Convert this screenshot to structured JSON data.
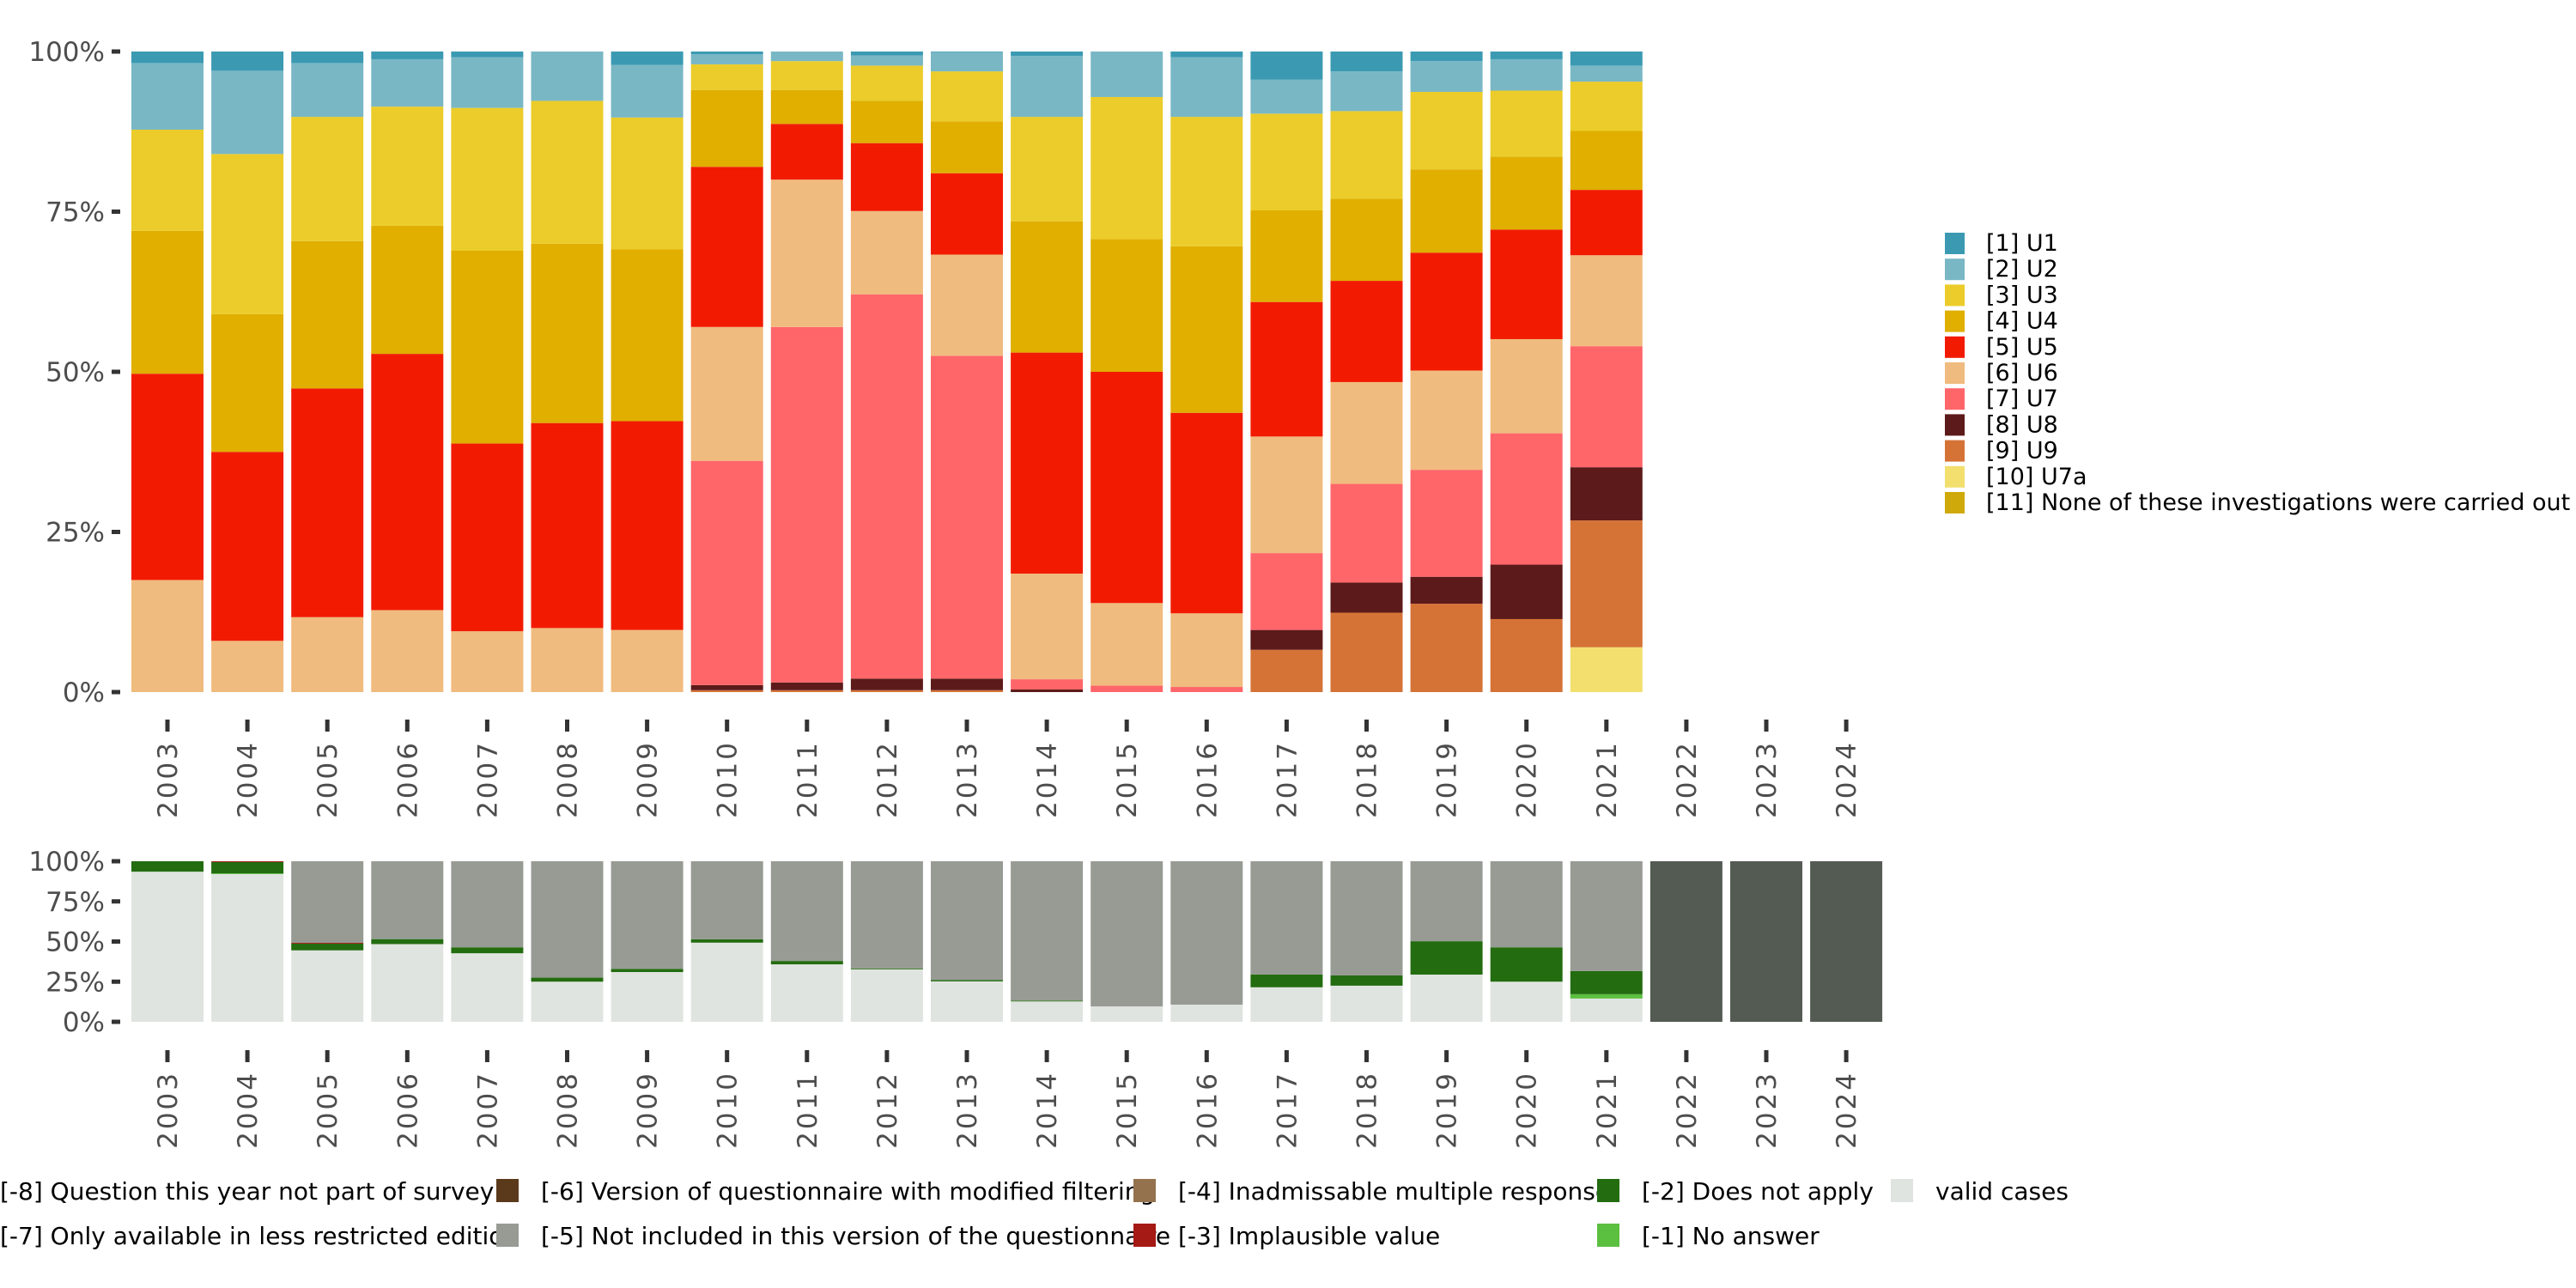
{
  "chart_data": [
    {
      "type": "bar",
      "stacked": true,
      "orientation": "vertical",
      "title": "",
      "xlabel": "",
      "ylabel": "",
      "ylim": [
        0,
        100
      ],
      "y_ticks": [
        "0%",
        "25%",
        "50%",
        "75%",
        "100%"
      ],
      "y_tick_values": [
        0,
        25,
        50,
        75,
        100
      ],
      "categories": [
        "2003",
        "2004",
        "2005",
        "2006",
        "2007",
        "2008",
        "2009",
        "2010",
        "2011",
        "2012",
        "2013",
        "2014",
        "2015",
        "2016",
        "2017",
        "2018",
        "2019",
        "2020",
        "2021",
        "2022",
        "2023",
        "2024"
      ],
      "legend_position": "right",
      "grid": false,
      "series": [
        {
          "name": "[10] U7a",
          "color": "#F2DF6E",
          "values": [
            0,
            0,
            0,
            0,
            0,
            0,
            0,
            0,
            0,
            0,
            0,
            0,
            0,
            0,
            0,
            0,
            0,
            0,
            7.0,
            0,
            0,
            0
          ]
        },
        {
          "name": "[9] U9",
          "color": "#D57337",
          "values": [
            0,
            0,
            0,
            0,
            0,
            0,
            0,
            0.3,
            0.3,
            0.3,
            0.3,
            0,
            0,
            0,
            6.6,
            12.4,
            13.8,
            11.4,
            19.8,
            0,
            0,
            0
          ]
        },
        {
          "name": "[8] U8",
          "color": "#5C1A1A",
          "values": [
            0,
            0,
            0,
            0,
            0,
            0,
            0,
            0.8,
            1.2,
            1.8,
            1.8,
            0.4,
            0,
            0,
            3.1,
            4.7,
            4.2,
            8.5,
            8.3,
            0,
            0,
            0
          ]
        },
        {
          "name": "[7] U7",
          "color": "#FF666A",
          "values": [
            0,
            0,
            0,
            0,
            0,
            0,
            0,
            35.0,
            55.5,
            60.0,
            50.4,
            1.6,
            1.0,
            0.8,
            12.0,
            15.4,
            16.7,
            20.5,
            18.9,
            0,
            0,
            0
          ]
        },
        {
          "name": "[6] U6",
          "color": "#F0BB7E",
          "values": [
            17.5,
            8.0,
            11.7,
            12.8,
            9.5,
            10.0,
            9.7,
            20.9,
            23.0,
            13.0,
            15.8,
            16.5,
            12.9,
            11.5,
            18.2,
            15.9,
            15.5,
            14.7,
            14.2,
            0,
            0,
            0
          ]
        },
        {
          "name": "[5] U5",
          "color": "#F21B02",
          "values": [
            32.2,
            29.5,
            35.7,
            40.0,
            29.3,
            32.0,
            32.6,
            25.0,
            8.7,
            10.6,
            12.7,
            34.5,
            36.1,
            31.3,
            21.0,
            15.8,
            18.4,
            17.1,
            10.2,
            0,
            0,
            0
          ]
        },
        {
          "name": "[4] U4",
          "color": "#E0AF00",
          "values": [
            22.3,
            21.5,
            23.0,
            20.0,
            30.1,
            28.0,
            26.8,
            12.0,
            5.3,
            6.6,
            8.1,
            20.5,
            20.7,
            26.0,
            14.3,
            12.8,
            13.0,
            11.4,
            9.2,
            0,
            0,
            0
          ]
        },
        {
          "name": "[3] U3",
          "color": "#EBCC2B",
          "values": [
            15.8,
            25.0,
            19.4,
            18.6,
            22.3,
            22.3,
            20.6,
            4.0,
            4.5,
            5.5,
            7.8,
            16.3,
            22.2,
            20.2,
            15.1,
            13.7,
            12.1,
            10.3,
            7.7,
            0,
            0,
            0
          ]
        },
        {
          "name": "[2] U2",
          "color": "#79B7C5",
          "values": [
            10.4,
            13.0,
            8.4,
            7.4,
            7.9,
            7.7,
            8.2,
            1.6,
            1.5,
            1.6,
            3.0,
            9.5,
            7.1,
            9.3,
            5.3,
            6.2,
            4.8,
            4.9,
            2.5,
            0,
            0,
            0
          ]
        },
        {
          "name": "[1] U1",
          "color": "#3B9AB2",
          "values": [
            1.8,
            3.0,
            1.8,
            1.2,
            0.9,
            0,
            2.1,
            0.4,
            0,
            0.6,
            0.1,
            0.7,
            0,
            0.9,
            4.4,
            3.1,
            1.5,
            1.2,
            2.2,
            0,
            0,
            0
          ]
        }
      ],
      "legend": [
        {
          "label": "[1] U1",
          "color": "#3B9AB2"
        },
        {
          "label": "[2] U2",
          "color": "#79B7C5"
        },
        {
          "label": "[3] U3",
          "color": "#EBCC2B"
        },
        {
          "label": "[4] U4",
          "color": "#E0AF00"
        },
        {
          "label": "[5] U5",
          "color": "#F21B02"
        },
        {
          "label": "[6] U6",
          "color": "#F0BB7E"
        },
        {
          "label": "[7] U7",
          "color": "#FF666A"
        },
        {
          "label": "[8] U8",
          "color": "#5C1A1A"
        },
        {
          "label": "[9] U9",
          "color": "#D57337"
        },
        {
          "label": "[10] U7a",
          "color": "#F2DF6E"
        },
        {
          "label": "[11] None of these investigations were carried out",
          "color": "#CFA809"
        }
      ]
    },
    {
      "type": "bar",
      "stacked": true,
      "orientation": "vertical",
      "title": "",
      "xlabel": "",
      "ylabel": "",
      "ylim": [
        0,
        100
      ],
      "y_ticks": [
        "0%",
        "25%",
        "50%",
        "75%",
        "100%"
      ],
      "y_tick_values": [
        0,
        25,
        50,
        75,
        100
      ],
      "categories": [
        "2003",
        "2004",
        "2005",
        "2006",
        "2007",
        "2008",
        "2009",
        "2010",
        "2011",
        "2012",
        "2013",
        "2014",
        "2015",
        "2016",
        "2017",
        "2018",
        "2019",
        "2020",
        "2021",
        "2022",
        "2023",
        "2024"
      ],
      "legend_position": "bottom",
      "grid": false,
      "series": [
        {
          "name": "valid cases",
          "color": "#E0E4E0",
          "values": [
            93.5,
            92.0,
            44.5,
            48.4,
            42.7,
            25.0,
            31.0,
            49.3,
            35.8,
            32.7,
            25.2,
            12.7,
            9.6,
            10.7,
            21.5,
            22.5,
            29.4,
            25.0,
            14.5,
            0,
            0,
            0
          ]
        },
        {
          "name": "[-1] No answer",
          "color": "#5BBF40",
          "values": [
            0,
            0.5,
            0,
            0,
            0,
            0,
            0,
            0,
            0,
            0,
            0,
            0,
            0,
            0,
            0,
            0,
            0,
            0,
            2.7,
            0,
            0,
            0
          ]
        },
        {
          "name": "[-2] Does not apply",
          "color": "#236C10",
          "values": [
            6.5,
            7.0,
            4.2,
            3.1,
            3.7,
            2.5,
            2.0,
            2.1,
            2.1,
            0.5,
            0.9,
            0.5,
            0,
            0,
            8.0,
            6.4,
            20.8,
            21.4,
            14.4,
            0,
            0,
            0
          ]
        },
        {
          "name": "[-3] Implausible value",
          "color": "#A51A14",
          "values": [
            0,
            0.5,
            0.5,
            0,
            0,
            0,
            0,
            0,
            0,
            0,
            0,
            0,
            0,
            0,
            0,
            0,
            0,
            0,
            0,
            0,
            0,
            0
          ]
        },
        {
          "name": "[-4] Inadmissable multiple response",
          "color": "#94724E",
          "values": [
            0,
            0,
            0,
            0,
            0,
            0,
            0,
            0,
            0,
            0,
            0,
            0,
            0,
            0,
            0,
            0,
            0,
            0,
            0,
            0,
            0,
            0
          ]
        },
        {
          "name": "[-5] Not included in this version of the questionnaire",
          "color": "#979B94",
          "values": [
            0,
            0,
            50.8,
            48.5,
            53.6,
            72.5,
            67.0,
            48.6,
            62.1,
            66.8,
            73.9,
            86.8,
            90.4,
            89.3,
            70.5,
            71.1,
            49.8,
            53.6,
            68.4,
            0,
            0,
            0
          ]
        },
        {
          "name": "[-6] Version of questionnaire with modified filtering",
          "color": "#5B3A1C",
          "values": [
            0,
            0,
            0,
            0,
            0,
            0,
            0,
            0,
            0,
            0,
            0,
            0,
            0,
            0,
            0,
            0,
            0,
            0,
            0,
            0,
            0,
            0
          ]
        },
        {
          "name": "[-7] Only available in less restricted edition",
          "color": "#979B94",
          "values": [
            0,
            0,
            0,
            0,
            0,
            0,
            0,
            0,
            0,
            0,
            0,
            0,
            0,
            0,
            0,
            0,
            0,
            0,
            0,
            0,
            0,
            0
          ]
        },
        {
          "name": "[-8] Question this year not part of survey",
          "color": "#545B53",
          "values": [
            0,
            0,
            0,
            0,
            0,
            0,
            0,
            0,
            0,
            0,
            0,
            0,
            0,
            0,
            0,
            0,
            0,
            0,
            0,
            100,
            100,
            100
          ]
        }
      ],
      "legend": [
        {
          "label": "[-8] Question this year not part of survey",
          "color": "#545B53",
          "row": 0,
          "col": 0,
          "show_key": false
        },
        {
          "label": "[-7] Only available in less restricted edition",
          "color": "#979B94",
          "row": 1,
          "col": 0,
          "show_key": false
        },
        {
          "label": "[-6] Version of questionnaire with modified filtering",
          "color": "#5B3A1C",
          "row": 0,
          "col": 1,
          "show_key": true
        },
        {
          "label": "[-5] Not included in this version of the questionnaire",
          "color": "#979B94",
          "row": 1,
          "col": 1,
          "show_key": true
        },
        {
          "label": "[-4] Inadmissable multiple response",
          "color": "#94724E",
          "row": 0,
          "col": 2,
          "show_key": true
        },
        {
          "label": "[-3] Implausible value",
          "color": "#A51A14",
          "row": 1,
          "col": 2,
          "show_key": true
        },
        {
          "label": "[-2] Does not apply",
          "color": "#236C10",
          "row": 0,
          "col": 3,
          "show_key": true
        },
        {
          "label": "[-1] No answer",
          "color": "#5BBF40",
          "row": 1,
          "col": 3,
          "show_key": true
        },
        {
          "label": "valid cases",
          "color": "#E0E4E0",
          "row": 0,
          "col": 4,
          "show_key": true
        }
      ]
    }
  ]
}
